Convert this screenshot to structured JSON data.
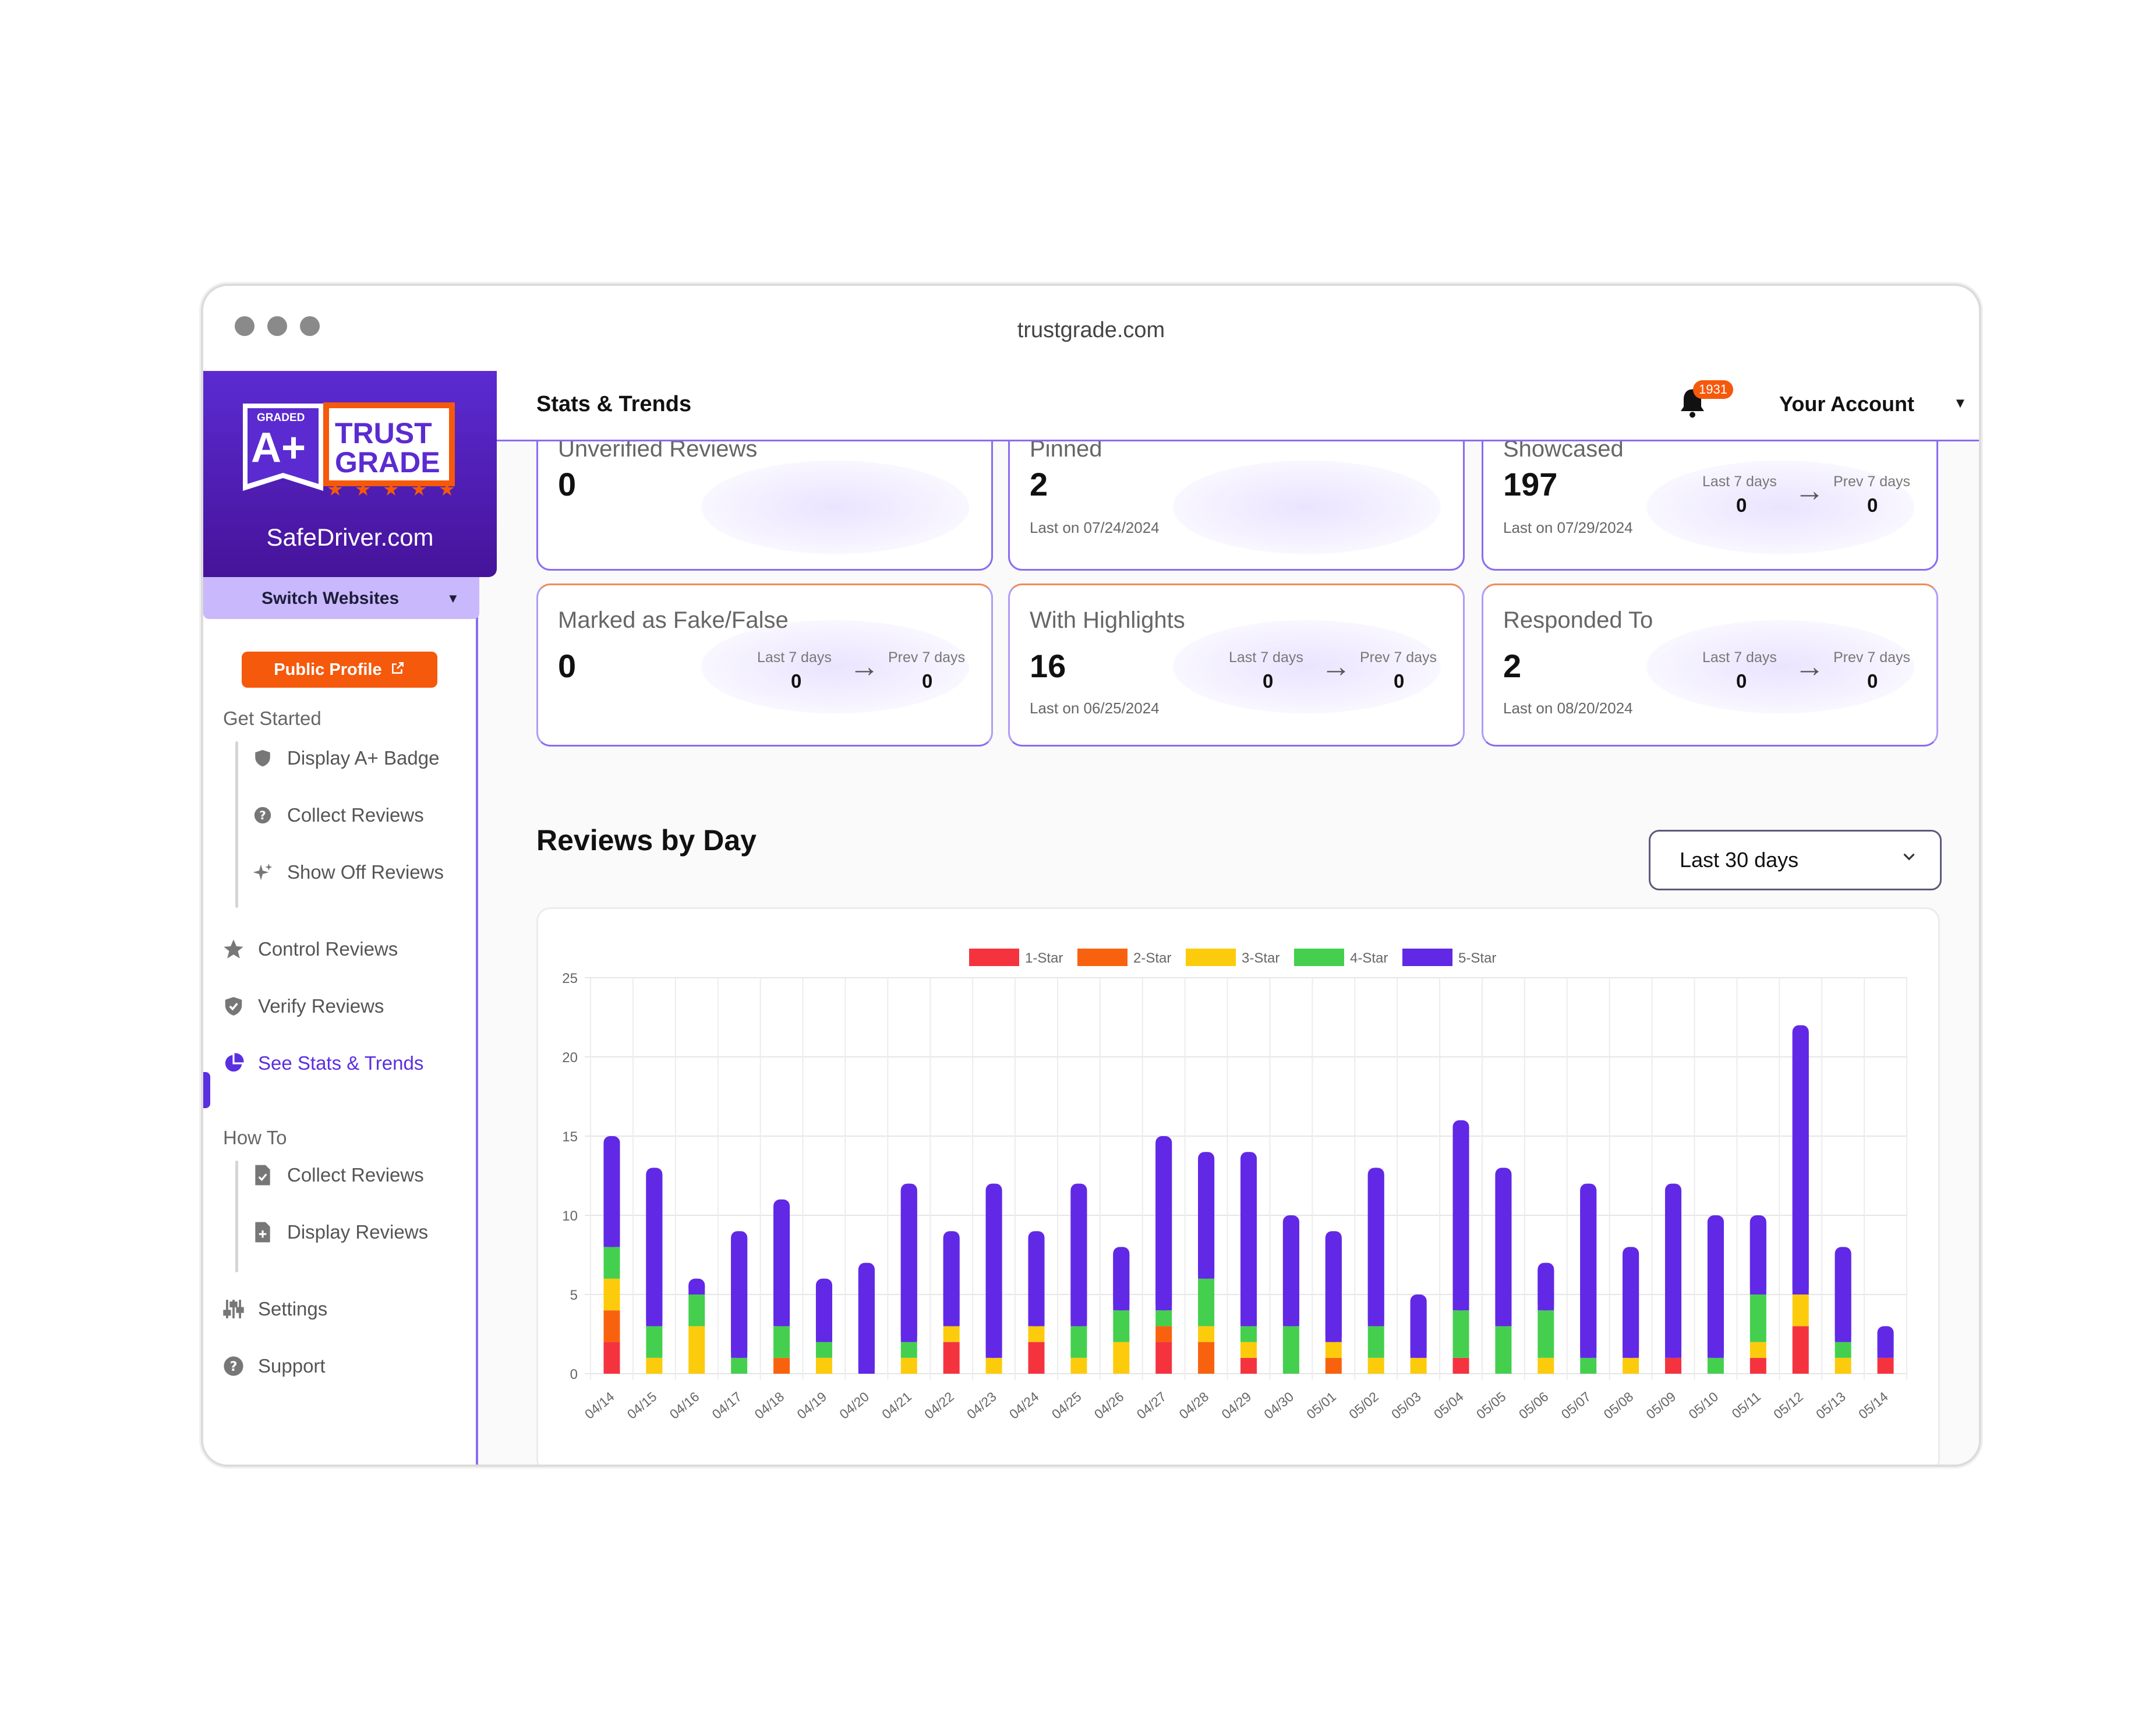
{
  "browser": {
    "url": "trustgrade.com"
  },
  "brand": {
    "logo_small": "GRADED",
    "logo_grade": "A+",
    "logo_line1": "TRUST",
    "logo_line2": "GRADE",
    "site_name": "SafeDriver.com",
    "switch_label": "Switch Websites"
  },
  "sidebar": {
    "public_profile": "Public Profile",
    "get_started": "Get Started",
    "get_started_items": [
      {
        "label": "Display A+ Badge",
        "icon": "shield-icon"
      },
      {
        "label": "Collect Reviews",
        "icon": "question-icon"
      },
      {
        "label": "Show Off Reviews",
        "icon": "sparkle-icon"
      }
    ],
    "main_items": [
      {
        "label": "Control Reviews",
        "icon": "star-icon"
      },
      {
        "label": "Verify Reviews",
        "icon": "shield-check-icon"
      },
      {
        "label": "See Stats & Trends",
        "icon": "pie-chart-icon",
        "active": true
      }
    ],
    "how_to": "How To",
    "how_to_items": [
      {
        "label": "Collect Reviews",
        "icon": "document-check-icon"
      },
      {
        "label": "Display Reviews",
        "icon": "document-plus-icon"
      }
    ],
    "bottom_items": [
      {
        "label": "Settings",
        "icon": "sliders-icon"
      },
      {
        "label": "Support",
        "icon": "help-icon"
      }
    ]
  },
  "topbar": {
    "title": "Stats & Trends",
    "notification_count": "1931",
    "account_label": "Your Account"
  },
  "cards": [
    {
      "label": "Unverified Reviews",
      "value": "0"
    },
    {
      "label": "Pinned",
      "value": "2",
      "last": "Last on 07/24/2024"
    },
    {
      "label": "Showcased",
      "value": "197",
      "last": "Last on 07/29/2024",
      "last7_label": "Last 7 days",
      "last7": "0",
      "prev7_label": "Prev 7 days",
      "prev7": "0"
    },
    {
      "label": "Marked as Fake/False",
      "value": "0",
      "last7_label": "Last 7 days",
      "last7": "0",
      "prev7_label": "Prev 7 days",
      "prev7": "0"
    },
    {
      "label": "With Highlights",
      "value": "16",
      "last": "Last on 06/25/2024",
      "last7_label": "Last 7 days",
      "last7": "0",
      "prev7_label": "Prev 7 days",
      "prev7": "0"
    },
    {
      "label": "Responded To",
      "value": "2",
      "last": "Last on 08/20/2024",
      "last7_label": "Last 7 days",
      "last7": "0",
      "prev7_label": "Prev 7 days",
      "prev7": "0"
    }
  ],
  "reviews_section": {
    "title": "Reviews by Day",
    "range_value": "Last 30 days"
  },
  "colors": {
    "accent": "#5a2fe0",
    "orange": "#f5590c",
    "one_star": "#f5333f",
    "two_star": "#f8620e",
    "three_star": "#fccb0c",
    "four_star": "#45cf4f",
    "five_star": "#6128e6"
  },
  "chart_data": {
    "type": "bar",
    "stacked": true,
    "categories": [
      "04/14",
      "04/15",
      "04/16",
      "04/17",
      "04/18",
      "04/19",
      "04/20",
      "04/21",
      "04/22",
      "04/23",
      "04/24",
      "04/25",
      "04/26",
      "04/27",
      "04/28",
      "04/29",
      "04/30",
      "05/01",
      "05/02",
      "05/03",
      "05/04",
      "05/05",
      "05/06",
      "05/07",
      "05/08",
      "05/09",
      "05/10",
      "05/11",
      "05/12",
      "05/13",
      "05/14"
    ],
    "series": [
      {
        "name": "1-Star",
        "color": "#f5333f",
        "values": [
          2,
          0,
          0,
          0,
          0,
          0,
          0,
          0,
          2,
          0,
          2,
          0,
          0,
          2,
          0,
          1,
          0,
          0,
          0,
          0,
          1,
          0,
          0,
          0,
          0,
          1,
          0,
          1,
          3,
          0,
          1
        ]
      },
      {
        "name": "2-Star",
        "color": "#f8620e",
        "values": [
          2,
          0,
          0,
          0,
          1,
          0,
          0,
          0,
          0,
          0,
          0,
          0,
          0,
          1,
          2,
          0,
          0,
          1,
          0,
          0,
          0,
          0,
          0,
          0,
          0,
          0,
          0,
          0,
          0,
          0,
          0
        ]
      },
      {
        "name": "3-Star",
        "color": "#fccb0c",
        "values": [
          2,
          1,
          3,
          0,
          0,
          1,
          0,
          1,
          1,
          1,
          1,
          1,
          2,
          0,
          1,
          1,
          0,
          1,
          1,
          1,
          0,
          0,
          1,
          0,
          1,
          0,
          0,
          1,
          2,
          1,
          0
        ]
      },
      {
        "name": "4-Star",
        "color": "#45cf4f",
        "values": [
          2,
          2,
          2,
          1,
          2,
          1,
          0,
          1,
          0,
          0,
          0,
          2,
          2,
          1,
          3,
          1,
          3,
          0,
          2,
          0,
          3,
          3,
          3,
          1,
          0,
          0,
          1,
          3,
          0,
          1,
          0
        ]
      },
      {
        "name": "5-Star",
        "color": "#6128e6",
        "values": [
          7,
          10,
          1,
          8,
          8,
          4,
          7,
          10,
          6,
          11,
          6,
          9,
          4,
          11,
          8,
          11,
          7,
          7,
          10,
          4,
          12,
          10,
          3,
          11,
          7,
          11,
          9,
          5,
          17,
          6,
          2
        ]
      }
    ],
    "ylim": [
      0,
      25
    ],
    "yticks": [
      0,
      5,
      10,
      15,
      20,
      25
    ],
    "legend": "top-center",
    "grid": true
  }
}
